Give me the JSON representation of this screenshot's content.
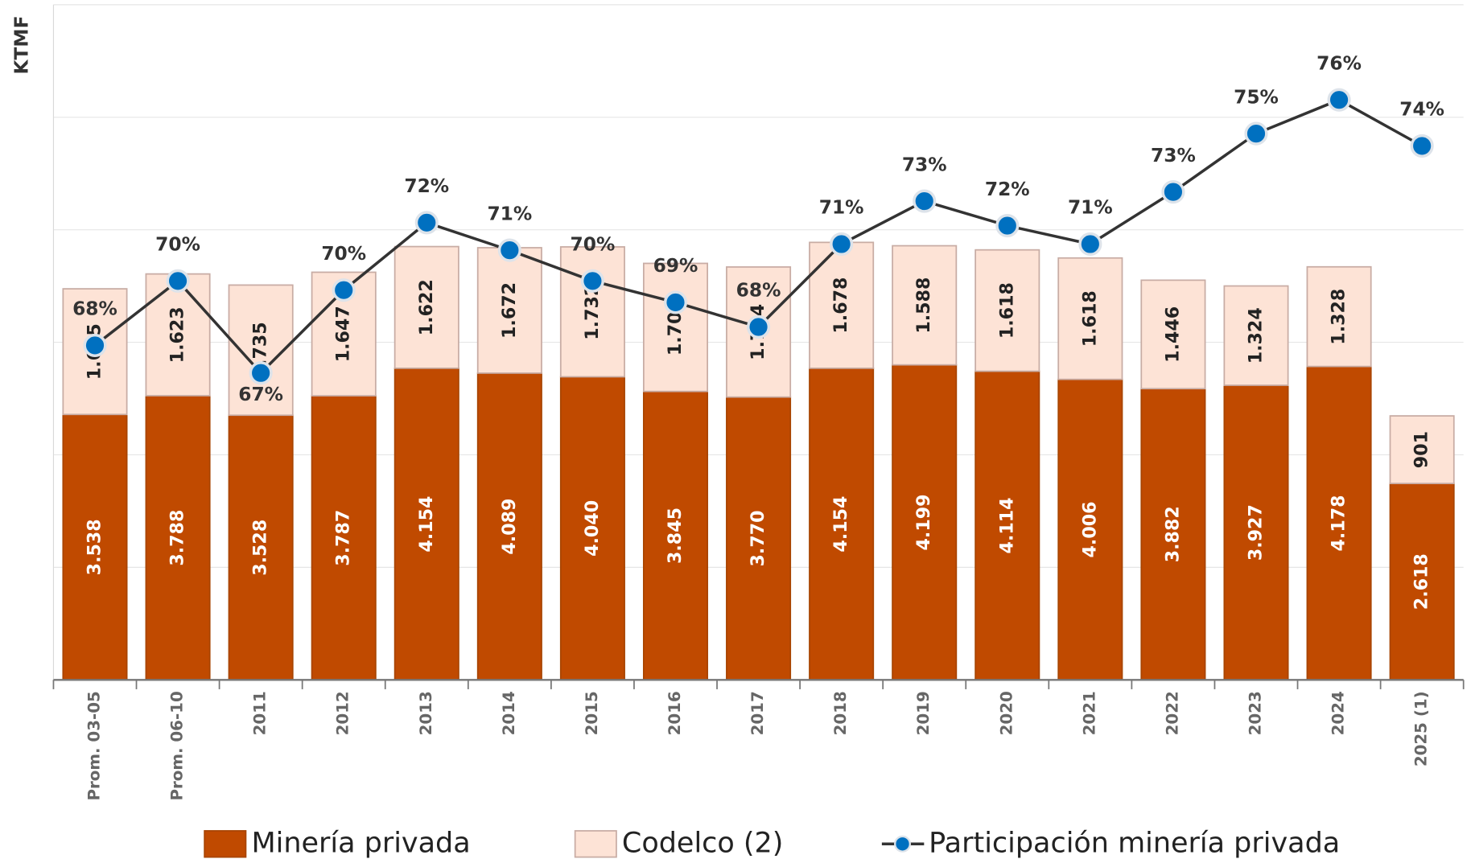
{
  "chart_data": {
    "type": "bar",
    "stacked": true,
    "y_label": "KTMF",
    "categories": [
      "Prom. 03-05",
      "Prom. 06-10",
      "2011",
      "2012",
      "2013",
      "2014",
      "2015",
      "2016",
      "2017",
      "2018",
      "2019",
      "2020",
      "2021",
      "2022",
      "2023",
      "2024",
      "2025 (1)"
    ],
    "ylim": [
      0,
      9000
    ],
    "yticks": [
      0,
      1500,
      3000,
      4500,
      6000,
      7500,
      9000
    ],
    "grid": true,
    "y2lim": [
      57,
      79
    ],
    "legend": "bottom",
    "series": [
      {
        "name": "Minería privada",
        "color": "#c04a00",
        "values": [
          3538,
          3788,
          3528,
          3787,
          4154,
          4089,
          4040,
          3845,
          3770,
          4154,
          4199,
          4114,
          4006,
          3882,
          3927,
          4178,
          2618
        ],
        "value_labels": [
          "3.538",
          "3.788",
          "3.528",
          "3.787",
          "4.154",
          "4.089",
          "4.040",
          "3.845",
          "3.770",
          "4.154",
          "4.199",
          "4.114",
          "4.006",
          "3.882",
          "3.927",
          "4.178",
          "2.618"
        ]
      },
      {
        "name": "Codelco (2)",
        "color": "#fde3d6",
        "values": [
          1675,
          1623,
          1735,
          1647,
          1622,
          1672,
          1732,
          1707,
          1734,
          1678,
          1588,
          1618,
          1618,
          1446,
          1324,
          1328,
          901
        ],
        "value_labels": [
          "1.675",
          "1.623",
          "1.735",
          "1.647",
          "1.622",
          "1.672",
          "1.732",
          "1.707",
          "1.734",
          "1.678",
          "1.588",
          "1.618",
          "1.618",
          "1.446",
          "1.324",
          "1.328",
          "901"
        ]
      },
      {
        "name": "Participación minería privada",
        "type": "line",
        "axis": "y2",
        "color": "#333333",
        "marker_color": "#0070c0",
        "values": [
          67.9,
          70.0,
          67.0,
          69.7,
          71.9,
          71.0,
          70.0,
          69.3,
          68.5,
          71.2,
          72.6,
          71.8,
          71.2,
          72.9,
          74.8,
          75.9,
          74.4
        ],
        "value_labels": [
          "68%",
          "70%",
          "67%",
          "70%",
          "72%",
          "71%",
          "70%",
          "69%",
          "68%",
          "71%",
          "73%",
          "72%",
          "71%",
          "73%",
          "75%",
          "76%",
          "74%"
        ]
      }
    ]
  }
}
